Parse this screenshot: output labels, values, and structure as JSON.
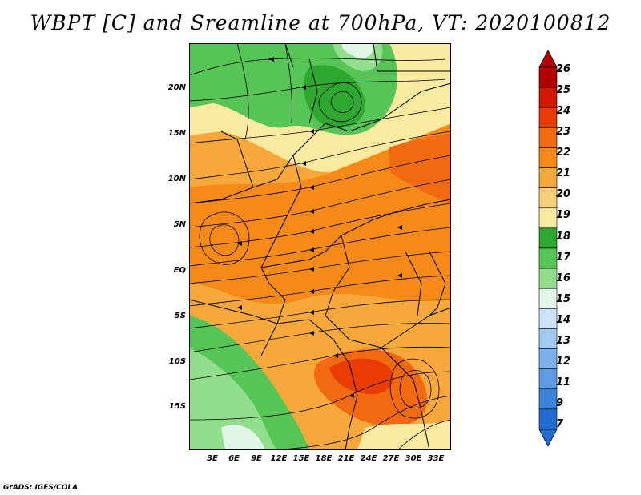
{
  "title": "WBPT [C] and Sreamline at 700hPa, VT: 2020100812",
  "footer": "GrADS: IGES/COLA",
  "map": {
    "y_labels": [
      "20N",
      "15N",
      "10N",
      "5N",
      "EQ",
      "5S",
      "10S",
      "15S"
    ],
    "x_labels": [
      "3E",
      "6E",
      "9E",
      "12E",
      "15E",
      "18E",
      "21E",
      "24E",
      "27E",
      "30E",
      "33E"
    ],
    "lon_range": [
      0,
      35
    ],
    "lat_range": [
      -20,
      25
    ]
  },
  "colorbar": {
    "labels": [
      "26",
      "25",
      "24",
      "23",
      "22",
      "21",
      "20",
      "19",
      "18",
      "17",
      "16",
      "15",
      "14",
      "13",
      "12",
      "11",
      "9",
      "7"
    ],
    "colors": [
      "#b20000",
      "#d21800",
      "#e83c00",
      "#f26a10",
      "#f58a18",
      "#f6a93a",
      "#f8cf78",
      "#faeaa0",
      "#2ea82e",
      "#56c556",
      "#92de8c",
      "#dff6e8",
      "#cae3fa",
      "#a2cbf2",
      "#7cb3ea",
      "#5b9ce3",
      "#3c84da",
      "#226cd0"
    ]
  }
}
